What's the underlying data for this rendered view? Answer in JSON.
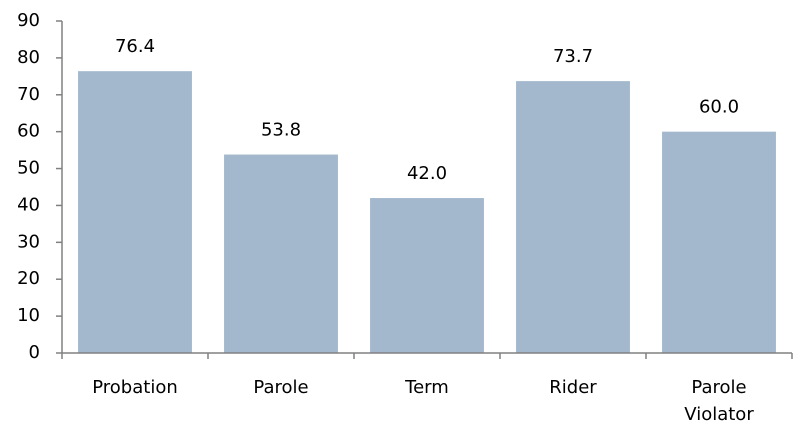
{
  "chart_data": {
    "type": "bar",
    "categories": [
      "Probation",
      "Parole",
      "Term",
      "Rider",
      "Parole Violator"
    ],
    "values": [
      76.4,
      53.8,
      42.0,
      73.7,
      60.0
    ],
    "value_labels": [
      "76.4",
      "53.8",
      "42.0",
      "73.7",
      "60.0"
    ],
    "color": "#a3b8cd",
    "ylim": [
      0,
      90
    ],
    "yticks": [
      0,
      10,
      20,
      30,
      40,
      50,
      60,
      70,
      80,
      90
    ],
    "grid": false
  }
}
